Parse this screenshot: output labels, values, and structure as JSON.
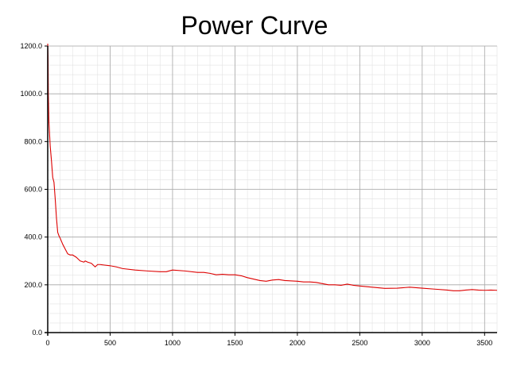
{
  "chart_data": {
    "type": "line",
    "title": "Power Curve",
    "xlabel": "",
    "ylabel": "",
    "xlim": [
      0,
      3600
    ],
    "ylim": [
      0,
      1200
    ],
    "x_ticks": [
      0,
      500,
      1000,
      1500,
      2000,
      2500,
      3000,
      3500
    ],
    "x_tick_labels": [
      "0",
      "500",
      "1000",
      "1500",
      "2000",
      "2500",
      "3000",
      "3500"
    ],
    "y_ticks": [
      0,
      200,
      400,
      600,
      800,
      1000,
      1200
    ],
    "y_tick_labels": [
      "0.0",
      "200.0",
      "400.0",
      "600.0",
      "800.0",
      "1000.0",
      "1200.0"
    ],
    "grid": true,
    "series": [
      {
        "color": "#dd0000",
        "x": [
          0,
          3,
          5,
          10,
          20,
          30,
          40,
          50,
          60,
          70,
          80,
          90,
          100,
          120,
          140,
          160,
          180,
          200,
          230,
          260,
          290,
          300,
          320,
          350,
          380,
          400,
          420,
          450,
          500,
          550,
          600,
          700,
          800,
          900,
          950,
          1000,
          1100,
          1200,
          1250,
          1300,
          1350,
          1400,
          1450,
          1500,
          1550,
          1600,
          1700,
          1750,
          1800,
          1850,
          1900,
          2000,
          2050,
          2100,
          2150,
          2200,
          2250,
          2300,
          2350,
          2400,
          2450,
          2500,
          2600,
          2700,
          2800,
          2850,
          2900,
          3000,
          3100,
          3200,
          3250,
          3300,
          3350,
          3400,
          3450,
          3500,
          3550,
          3600
        ],
        "y": [
          1210,
          1150,
          1000,
          880,
          780,
          720,
          650,
          630,
          560,
          480,
          420,
          405,
          395,
          370,
          350,
          330,
          325,
          325,
          315,
          300,
          295,
          300,
          295,
          290,
          275,
          285,
          285,
          283,
          280,
          275,
          268,
          262,
          258,
          255,
          255,
          262,
          258,
          252,
          252,
          248,
          242,
          244,
          242,
          242,
          238,
          230,
          218,
          215,
          220,
          222,
          218,
          215,
          212,
          212,
          210,
          205,
          200,
          200,
          198,
          203,
          198,
          195,
          190,
          185,
          186,
          188,
          190,
          186,
          182,
          178,
          175,
          175,
          178,
          180,
          178,
          177,
          178,
          177
        ]
      }
    ]
  }
}
